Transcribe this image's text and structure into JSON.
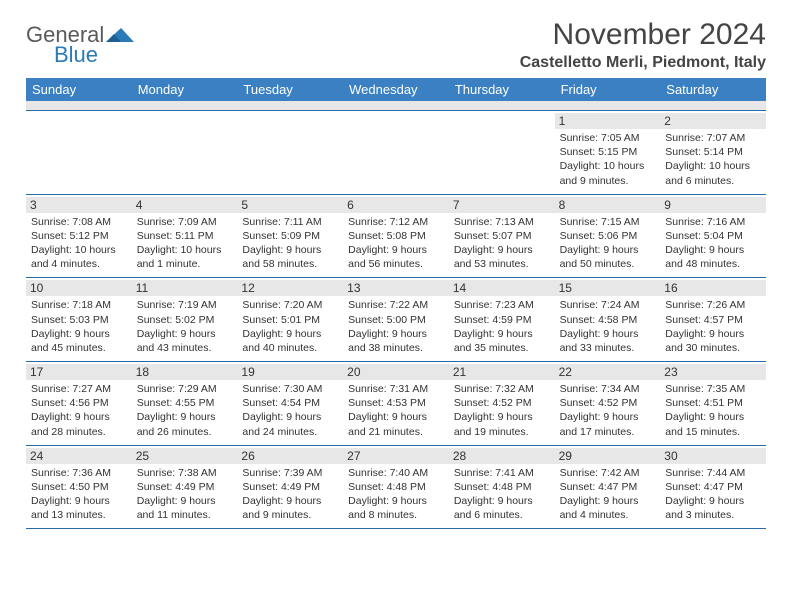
{
  "logo": {
    "general": "General",
    "blue": "Blue"
  },
  "title": "November 2024",
  "location": "Castelletto Merli, Piedmont, Italy",
  "colors": {
    "header_bg": "#3a80c3",
    "header_text": "#ffffff",
    "daynum_bg": "#e7e7e7",
    "rule": "#2a6aa8",
    "logo_gray": "#5a5a5a",
    "logo_blue": "#2a7ab8"
  },
  "day_names": [
    "Sunday",
    "Monday",
    "Tuesday",
    "Wednesday",
    "Thursday",
    "Friday",
    "Saturday"
  ],
  "weeks": [
    [
      {
        "n": "",
        "sunrise": "",
        "sunset": "",
        "daylight": ""
      },
      {
        "n": "",
        "sunrise": "",
        "sunset": "",
        "daylight": ""
      },
      {
        "n": "",
        "sunrise": "",
        "sunset": "",
        "daylight": ""
      },
      {
        "n": "",
        "sunrise": "",
        "sunset": "",
        "daylight": ""
      },
      {
        "n": "",
        "sunrise": "",
        "sunset": "",
        "daylight": ""
      },
      {
        "n": "1",
        "sunrise": "Sunrise: 7:05 AM",
        "sunset": "Sunset: 5:15 PM",
        "daylight": "Daylight: 10 hours and 9 minutes."
      },
      {
        "n": "2",
        "sunrise": "Sunrise: 7:07 AM",
        "sunset": "Sunset: 5:14 PM",
        "daylight": "Daylight: 10 hours and 6 minutes."
      }
    ],
    [
      {
        "n": "3",
        "sunrise": "Sunrise: 7:08 AM",
        "sunset": "Sunset: 5:12 PM",
        "daylight": "Daylight: 10 hours and 4 minutes."
      },
      {
        "n": "4",
        "sunrise": "Sunrise: 7:09 AM",
        "sunset": "Sunset: 5:11 PM",
        "daylight": "Daylight: 10 hours and 1 minute."
      },
      {
        "n": "5",
        "sunrise": "Sunrise: 7:11 AM",
        "sunset": "Sunset: 5:09 PM",
        "daylight": "Daylight: 9 hours and 58 minutes."
      },
      {
        "n": "6",
        "sunrise": "Sunrise: 7:12 AM",
        "sunset": "Sunset: 5:08 PM",
        "daylight": "Daylight: 9 hours and 56 minutes."
      },
      {
        "n": "7",
        "sunrise": "Sunrise: 7:13 AM",
        "sunset": "Sunset: 5:07 PM",
        "daylight": "Daylight: 9 hours and 53 minutes."
      },
      {
        "n": "8",
        "sunrise": "Sunrise: 7:15 AM",
        "sunset": "Sunset: 5:06 PM",
        "daylight": "Daylight: 9 hours and 50 minutes."
      },
      {
        "n": "9",
        "sunrise": "Sunrise: 7:16 AM",
        "sunset": "Sunset: 5:04 PM",
        "daylight": "Daylight: 9 hours and 48 minutes."
      }
    ],
    [
      {
        "n": "10",
        "sunrise": "Sunrise: 7:18 AM",
        "sunset": "Sunset: 5:03 PM",
        "daylight": "Daylight: 9 hours and 45 minutes."
      },
      {
        "n": "11",
        "sunrise": "Sunrise: 7:19 AM",
        "sunset": "Sunset: 5:02 PM",
        "daylight": "Daylight: 9 hours and 43 minutes."
      },
      {
        "n": "12",
        "sunrise": "Sunrise: 7:20 AM",
        "sunset": "Sunset: 5:01 PM",
        "daylight": "Daylight: 9 hours and 40 minutes."
      },
      {
        "n": "13",
        "sunrise": "Sunrise: 7:22 AM",
        "sunset": "Sunset: 5:00 PM",
        "daylight": "Daylight: 9 hours and 38 minutes."
      },
      {
        "n": "14",
        "sunrise": "Sunrise: 7:23 AM",
        "sunset": "Sunset: 4:59 PM",
        "daylight": "Daylight: 9 hours and 35 minutes."
      },
      {
        "n": "15",
        "sunrise": "Sunrise: 7:24 AM",
        "sunset": "Sunset: 4:58 PM",
        "daylight": "Daylight: 9 hours and 33 minutes."
      },
      {
        "n": "16",
        "sunrise": "Sunrise: 7:26 AM",
        "sunset": "Sunset: 4:57 PM",
        "daylight": "Daylight: 9 hours and 30 minutes."
      }
    ],
    [
      {
        "n": "17",
        "sunrise": "Sunrise: 7:27 AM",
        "sunset": "Sunset: 4:56 PM",
        "daylight": "Daylight: 9 hours and 28 minutes."
      },
      {
        "n": "18",
        "sunrise": "Sunrise: 7:29 AM",
        "sunset": "Sunset: 4:55 PM",
        "daylight": "Daylight: 9 hours and 26 minutes."
      },
      {
        "n": "19",
        "sunrise": "Sunrise: 7:30 AM",
        "sunset": "Sunset: 4:54 PM",
        "daylight": "Daylight: 9 hours and 24 minutes."
      },
      {
        "n": "20",
        "sunrise": "Sunrise: 7:31 AM",
        "sunset": "Sunset: 4:53 PM",
        "daylight": "Daylight: 9 hours and 21 minutes."
      },
      {
        "n": "21",
        "sunrise": "Sunrise: 7:32 AM",
        "sunset": "Sunset: 4:52 PM",
        "daylight": "Daylight: 9 hours and 19 minutes."
      },
      {
        "n": "22",
        "sunrise": "Sunrise: 7:34 AM",
        "sunset": "Sunset: 4:52 PM",
        "daylight": "Daylight: 9 hours and 17 minutes."
      },
      {
        "n": "23",
        "sunrise": "Sunrise: 7:35 AM",
        "sunset": "Sunset: 4:51 PM",
        "daylight": "Daylight: 9 hours and 15 minutes."
      }
    ],
    [
      {
        "n": "24",
        "sunrise": "Sunrise: 7:36 AM",
        "sunset": "Sunset: 4:50 PM",
        "daylight": "Daylight: 9 hours and 13 minutes."
      },
      {
        "n": "25",
        "sunrise": "Sunrise: 7:38 AM",
        "sunset": "Sunset: 4:49 PM",
        "daylight": "Daylight: 9 hours and 11 minutes."
      },
      {
        "n": "26",
        "sunrise": "Sunrise: 7:39 AM",
        "sunset": "Sunset: 4:49 PM",
        "daylight": "Daylight: 9 hours and 9 minutes."
      },
      {
        "n": "27",
        "sunrise": "Sunrise: 7:40 AM",
        "sunset": "Sunset: 4:48 PM",
        "daylight": "Daylight: 9 hours and 8 minutes."
      },
      {
        "n": "28",
        "sunrise": "Sunrise: 7:41 AM",
        "sunset": "Sunset: 4:48 PM",
        "daylight": "Daylight: 9 hours and 6 minutes."
      },
      {
        "n": "29",
        "sunrise": "Sunrise: 7:42 AM",
        "sunset": "Sunset: 4:47 PM",
        "daylight": "Daylight: 9 hours and 4 minutes."
      },
      {
        "n": "30",
        "sunrise": "Sunrise: 7:44 AM",
        "sunset": "Sunset: 4:47 PM",
        "daylight": "Daylight: 9 hours and 3 minutes."
      }
    ]
  ]
}
